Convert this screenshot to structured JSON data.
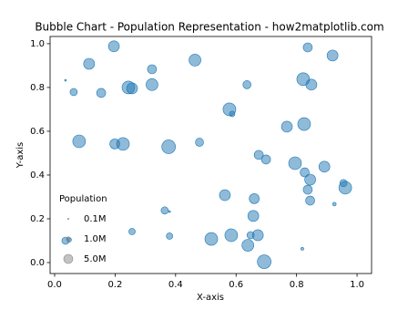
{
  "chart_data": {
    "type": "bubble",
    "title": "Bubble Chart - Population Representation - how2matplotlib.com",
    "xlabel": "X-axis",
    "ylabel": "Y-axis",
    "color": "#1f77b4",
    "xlim": [
      -0.015,
      1.048
    ],
    "ylim": [
      -0.05,
      1.033
    ],
    "xticks": [
      {
        "value": 0,
        "label": "0.0"
      },
      {
        "value": 0.2,
        "label": "0.2"
      },
      {
        "value": 0.4,
        "label": "0.4"
      },
      {
        "value": 0.6,
        "label": "0.6"
      },
      {
        "value": 0.8,
        "label": "0.8"
      },
      {
        "value": 1,
        "label": "1.0"
      }
    ],
    "yticks": [
      {
        "value": 0,
        "label": "0.0"
      },
      {
        "value": 0.2,
        "label": "0.2"
      },
      {
        "value": 0.4,
        "label": "0.4"
      },
      {
        "value": 0.6,
        "label": "0.6"
      },
      {
        "value": 0.8,
        "label": "0.8"
      },
      {
        "value": 1,
        "label": "1.0"
      }
    ],
    "x": [
      0.036,
      0.063,
      0.114,
      0.196,
      0.154,
      0.244,
      0.256,
      0.322,
      0.322,
      0.464,
      0.636,
      0.837,
      0.919,
      0.822,
      0.849,
      0.578,
      0.587,
      0.768,
      0.825,
      0.081,
      0.199,
      0.226,
      0.377,
      0.479,
      0.675,
      0.699,
      0.795,
      0.827,
      0.845,
      0.892,
      0.837,
      0.955,
      0.961,
      0.925,
      0.845,
      0.563,
      0.66,
      0.657,
      0.364,
      0.38,
      0.256,
      0.38,
      0.518,
      0.584,
      0.648,
      0.672,
      0.639,
      0.819,
      0.693,
      0.036,
      0.048
    ],
    "y": [
      0.833,
      0.779,
      0.908,
      0.988,
      0.775,
      0.8,
      0.796,
      0.883,
      0.813,
      0.925,
      0.813,
      0.983,
      0.946,
      0.838,
      0.813,
      0.7,
      0.679,
      0.621,
      0.633,
      0.554,
      0.542,
      0.542,
      0.529,
      0.55,
      0.492,
      0.471,
      0.454,
      0.412,
      0.379,
      0.438,
      0.333,
      0.363,
      0.342,
      0.267,
      0.283,
      0.308,
      0.292,
      0.213,
      0.238,
      0.233,
      0.142,
      0.121,
      0.108,
      0.125,
      0.125,
      0.125,
      0.079,
      0.063,
      0.004,
      0.1,
      0.104
    ],
    "sizes": [
      0.2,
      3.2,
      7.2,
      7.2,
      5,
      9.8,
      7.2,
      5,
      8.5,
      8.5,
      4,
      5,
      7.2,
      9.8,
      7.2,
      9.8,
      1.8,
      7.2,
      9.8,
      9.8,
      6,
      9.8,
      11.3,
      4,
      5,
      5,
      9.8,
      5,
      7.2,
      7.2,
      5,
      3.2,
      9.8,
      0.8,
      5,
      7.2,
      6,
      7.2,
      3.2,
      0.2,
      2.5,
      2.5,
      9.8,
      9.8,
      3.2,
      7.2,
      8.5,
      0.5,
      11.3,
      3.2,
      1.3
    ],
    "size_legend": {
      "title": "Population",
      "entries": [
        {
          "value": 0.1,
          "label": "0.1M"
        },
        {
          "value": 1,
          "label": "1.0M"
        },
        {
          "value": 5,
          "label": "5.0M"
        }
      ]
    }
  }
}
